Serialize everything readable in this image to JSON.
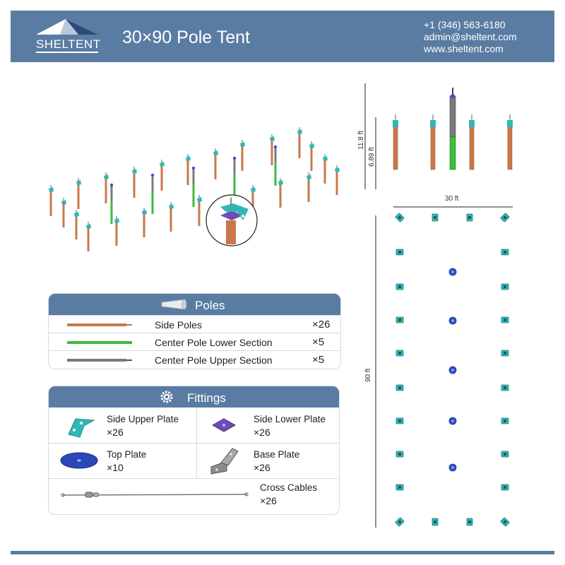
{
  "header": {
    "logo_text": "SHELTENT",
    "title": "30×90 Pole Tent",
    "phone": "+1 (346) 563-6180",
    "email": "admin@sheltent.com",
    "website": "www.sheltent.com"
  },
  "elevation": {
    "height_total": "11.8 ft",
    "height_side": "6.89 ft"
  },
  "plan": {
    "width_label": "30 ft",
    "length_label": "90 ft"
  },
  "poles_panel": {
    "title": "Poles",
    "items": [
      {
        "name": "Side Poles",
        "qty": "×26",
        "color": "#c8784a"
      },
      {
        "name": "Center Pole Lower Section",
        "qty": "×5",
        "color": "#3dbb3d"
      },
      {
        "name": "Center Pole Upper Section",
        "qty": "×5",
        "color": "#7a7a7a"
      }
    ]
  },
  "fittings_panel": {
    "title": "Fittings",
    "items": [
      {
        "name": "Side Upper Plate",
        "qty": "×26",
        "icon": "side-upper-plate-icon"
      },
      {
        "name": "Side Lower Plate",
        "qty": "×26",
        "icon": "side-lower-plate-icon"
      },
      {
        "name": "Top Plate",
        "qty": "×10",
        "icon": "top-plate-icon"
      },
      {
        "name": "Base Plate",
        "qty": "×26",
        "icon": "base-plate-icon"
      },
      {
        "name": "Cross Cables",
        "qty": "×26",
        "icon": "cross-cable-icon"
      }
    ]
  },
  "colors": {
    "header_bg": "#5a7ca3",
    "side_pole": "#c8784a",
    "center_lower": "#3dbb3d",
    "center_upper": "#7a7a7a",
    "fitting_teal": "#2fb8b8",
    "top_plate_blue": "#3355cc"
  }
}
